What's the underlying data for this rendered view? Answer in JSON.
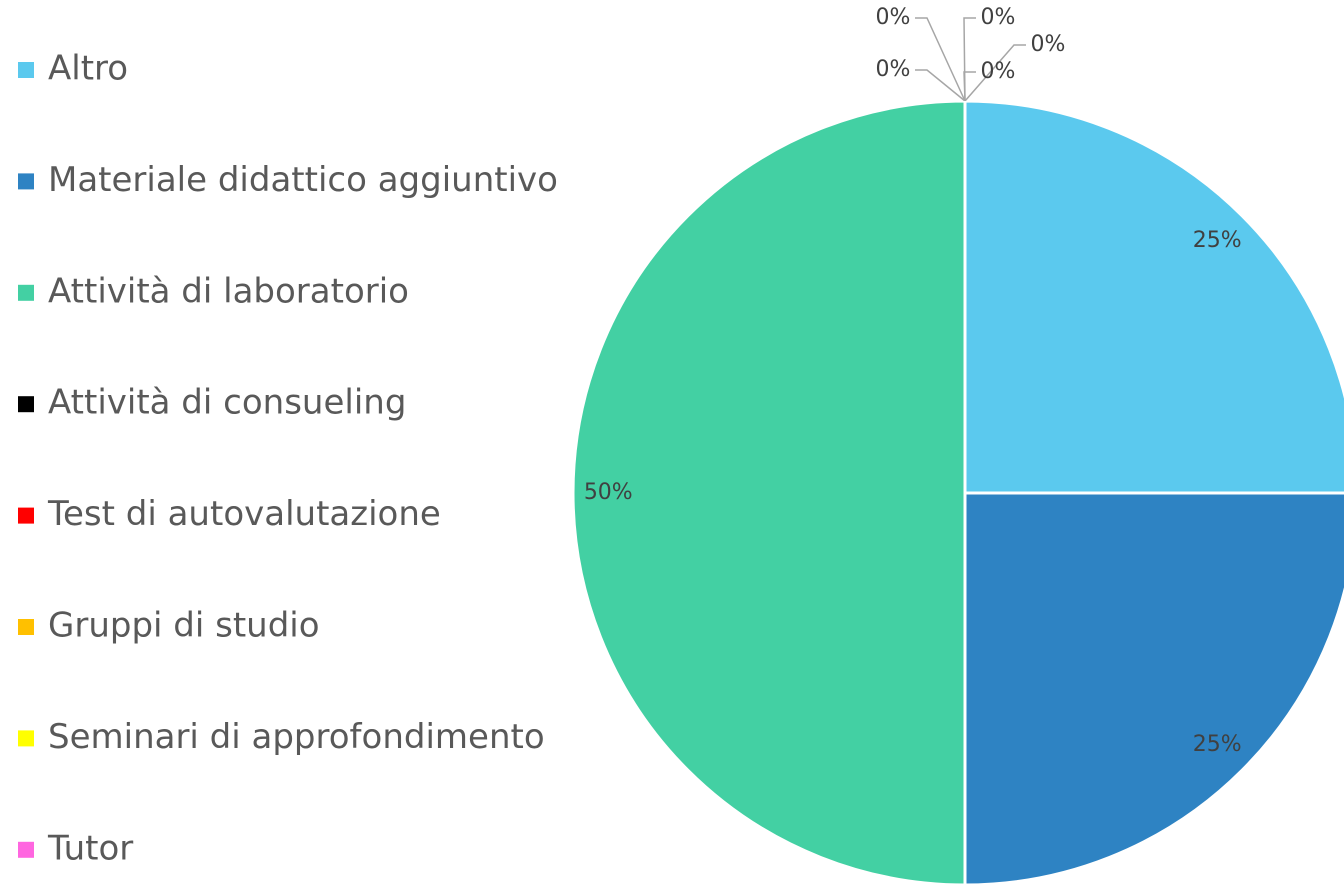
{
  "chart_data": {
    "type": "pie",
    "categories": [
      "Altro",
      "Materiale didattico aggiuntivo",
      "Attività di laboratorio",
      "Attività di consueling",
      "Test di autovalutazione",
      "Gruppi di studio",
      "Seminari di approfondimento",
      "Tutor"
    ],
    "values": [
      25,
      25,
      50,
      0,
      0,
      0,
      0,
      0
    ],
    "value_labels": [
      "25%",
      "25%",
      "50%",
      "0%",
      "0%",
      "0%",
      "0%",
      "0%"
    ],
    "colors": [
      "#5BC9EE",
      "#2E83C3",
      "#43D0A3",
      "#000000",
      "#FF0000",
      "#FFC000",
      "#FFFF00",
      "#FF66E0"
    ],
    "legend": "left"
  }
}
